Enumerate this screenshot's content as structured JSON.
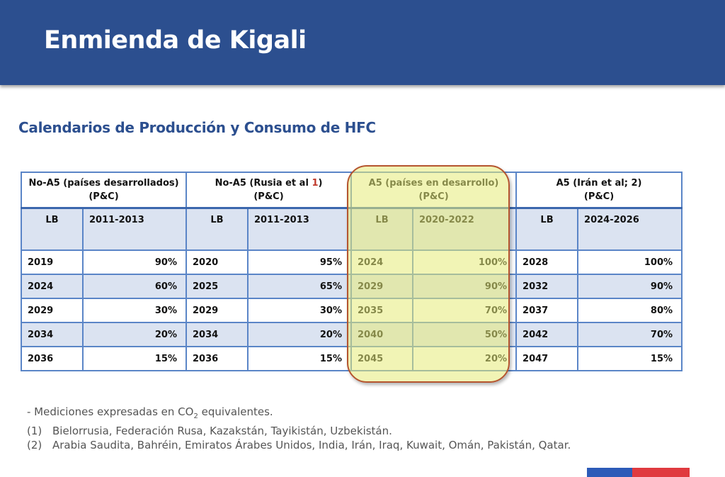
{
  "header": {
    "title": "Enmienda de Kigali"
  },
  "subtitle": "Calendarios de Producción y Consumo de HFC",
  "table": {
    "groups": [
      {
        "line1": "No-A5 (países desarrollados)",
        "line1_suffix": "",
        "line2": "(P&C)"
      },
      {
        "line1": "No-A5 (Rusia et al ",
        "line1_suffix": "1",
        "line1_close": ")",
        "line2": "(P&C)"
      },
      {
        "line1": "A5 (países en desarrollo)",
        "line1_suffix": "",
        "line2": "(P&C)"
      },
      {
        "line1": "A5 (Irán et al; 2)",
        "line1_suffix": "",
        "line2": "(P&C)"
      }
    ],
    "subheaders": [
      {
        "lb": "LB",
        "period": "2011-2013"
      },
      {
        "lb": "LB",
        "period": "2011-2013"
      },
      {
        "lb": "LB",
        "period": "2020-2022"
      },
      {
        "lb": "LB",
        "period": "2024-2026"
      }
    ],
    "rows": [
      [
        {
          "year": "2019",
          "pct": "90%"
        },
        {
          "year": "2020",
          "pct": "95%"
        },
        {
          "year": "2024",
          "pct": "100%"
        },
        {
          "year": "2028",
          "pct": "100%"
        }
      ],
      [
        {
          "year": "2024",
          "pct": "60%"
        },
        {
          "year": "2025",
          "pct": "65%"
        },
        {
          "year": "2029",
          "pct": "90%"
        },
        {
          "year": "2032",
          "pct": "90%"
        }
      ],
      [
        {
          "year": "2029",
          "pct": "30%"
        },
        {
          "year": "2029",
          "pct": "30%"
        },
        {
          "year": "2035",
          "pct": "70%"
        },
        {
          "year": "2037",
          "pct": "80%"
        }
      ],
      [
        {
          "year": "2034",
          "pct": "20%"
        },
        {
          "year": "2034",
          "pct": "20%"
        },
        {
          "year": "2040",
          "pct": "50%"
        },
        {
          "year": "2042",
          "pct": "70%"
        }
      ],
      [
        {
          "year": "2036",
          "pct": "15%"
        },
        {
          "year": "2036",
          "pct": "15%"
        },
        {
          "year": "2045",
          "pct": "20%"
        },
        {
          "year": "2047",
          "pct": "15%"
        }
      ]
    ]
  },
  "notes": {
    "line1_prefix": "- Mediciones expresadas en CO",
    "line1_sub": "2",
    "line1_suffix": " equivalentes.",
    "line2_num": "(1)",
    "line2_text": "Bielorrusia, Federación Rusa, Kazakstán, Tayikistán, Uzbekistán.",
    "line3_num": "(2)",
    "line3_text": "Arabia Saudita, Bahréin, Emiratos Árabes Unidos, India, Irán, Iraq, Kuwait, Omán, Pakistán, Qatar."
  },
  "colors": {
    "banner": "#2c4f8f",
    "subtitle": "#2c4f8f",
    "table_border": "#5a85c7",
    "row_alt": "#dbe3f1",
    "highlight_fill": "#e6eb78",
    "highlight_border": "#b5552f",
    "footer_blue": "#2c5bb8",
    "footer_red": "#e03a3f",
    "footnote_ref": "#c0392b"
  }
}
